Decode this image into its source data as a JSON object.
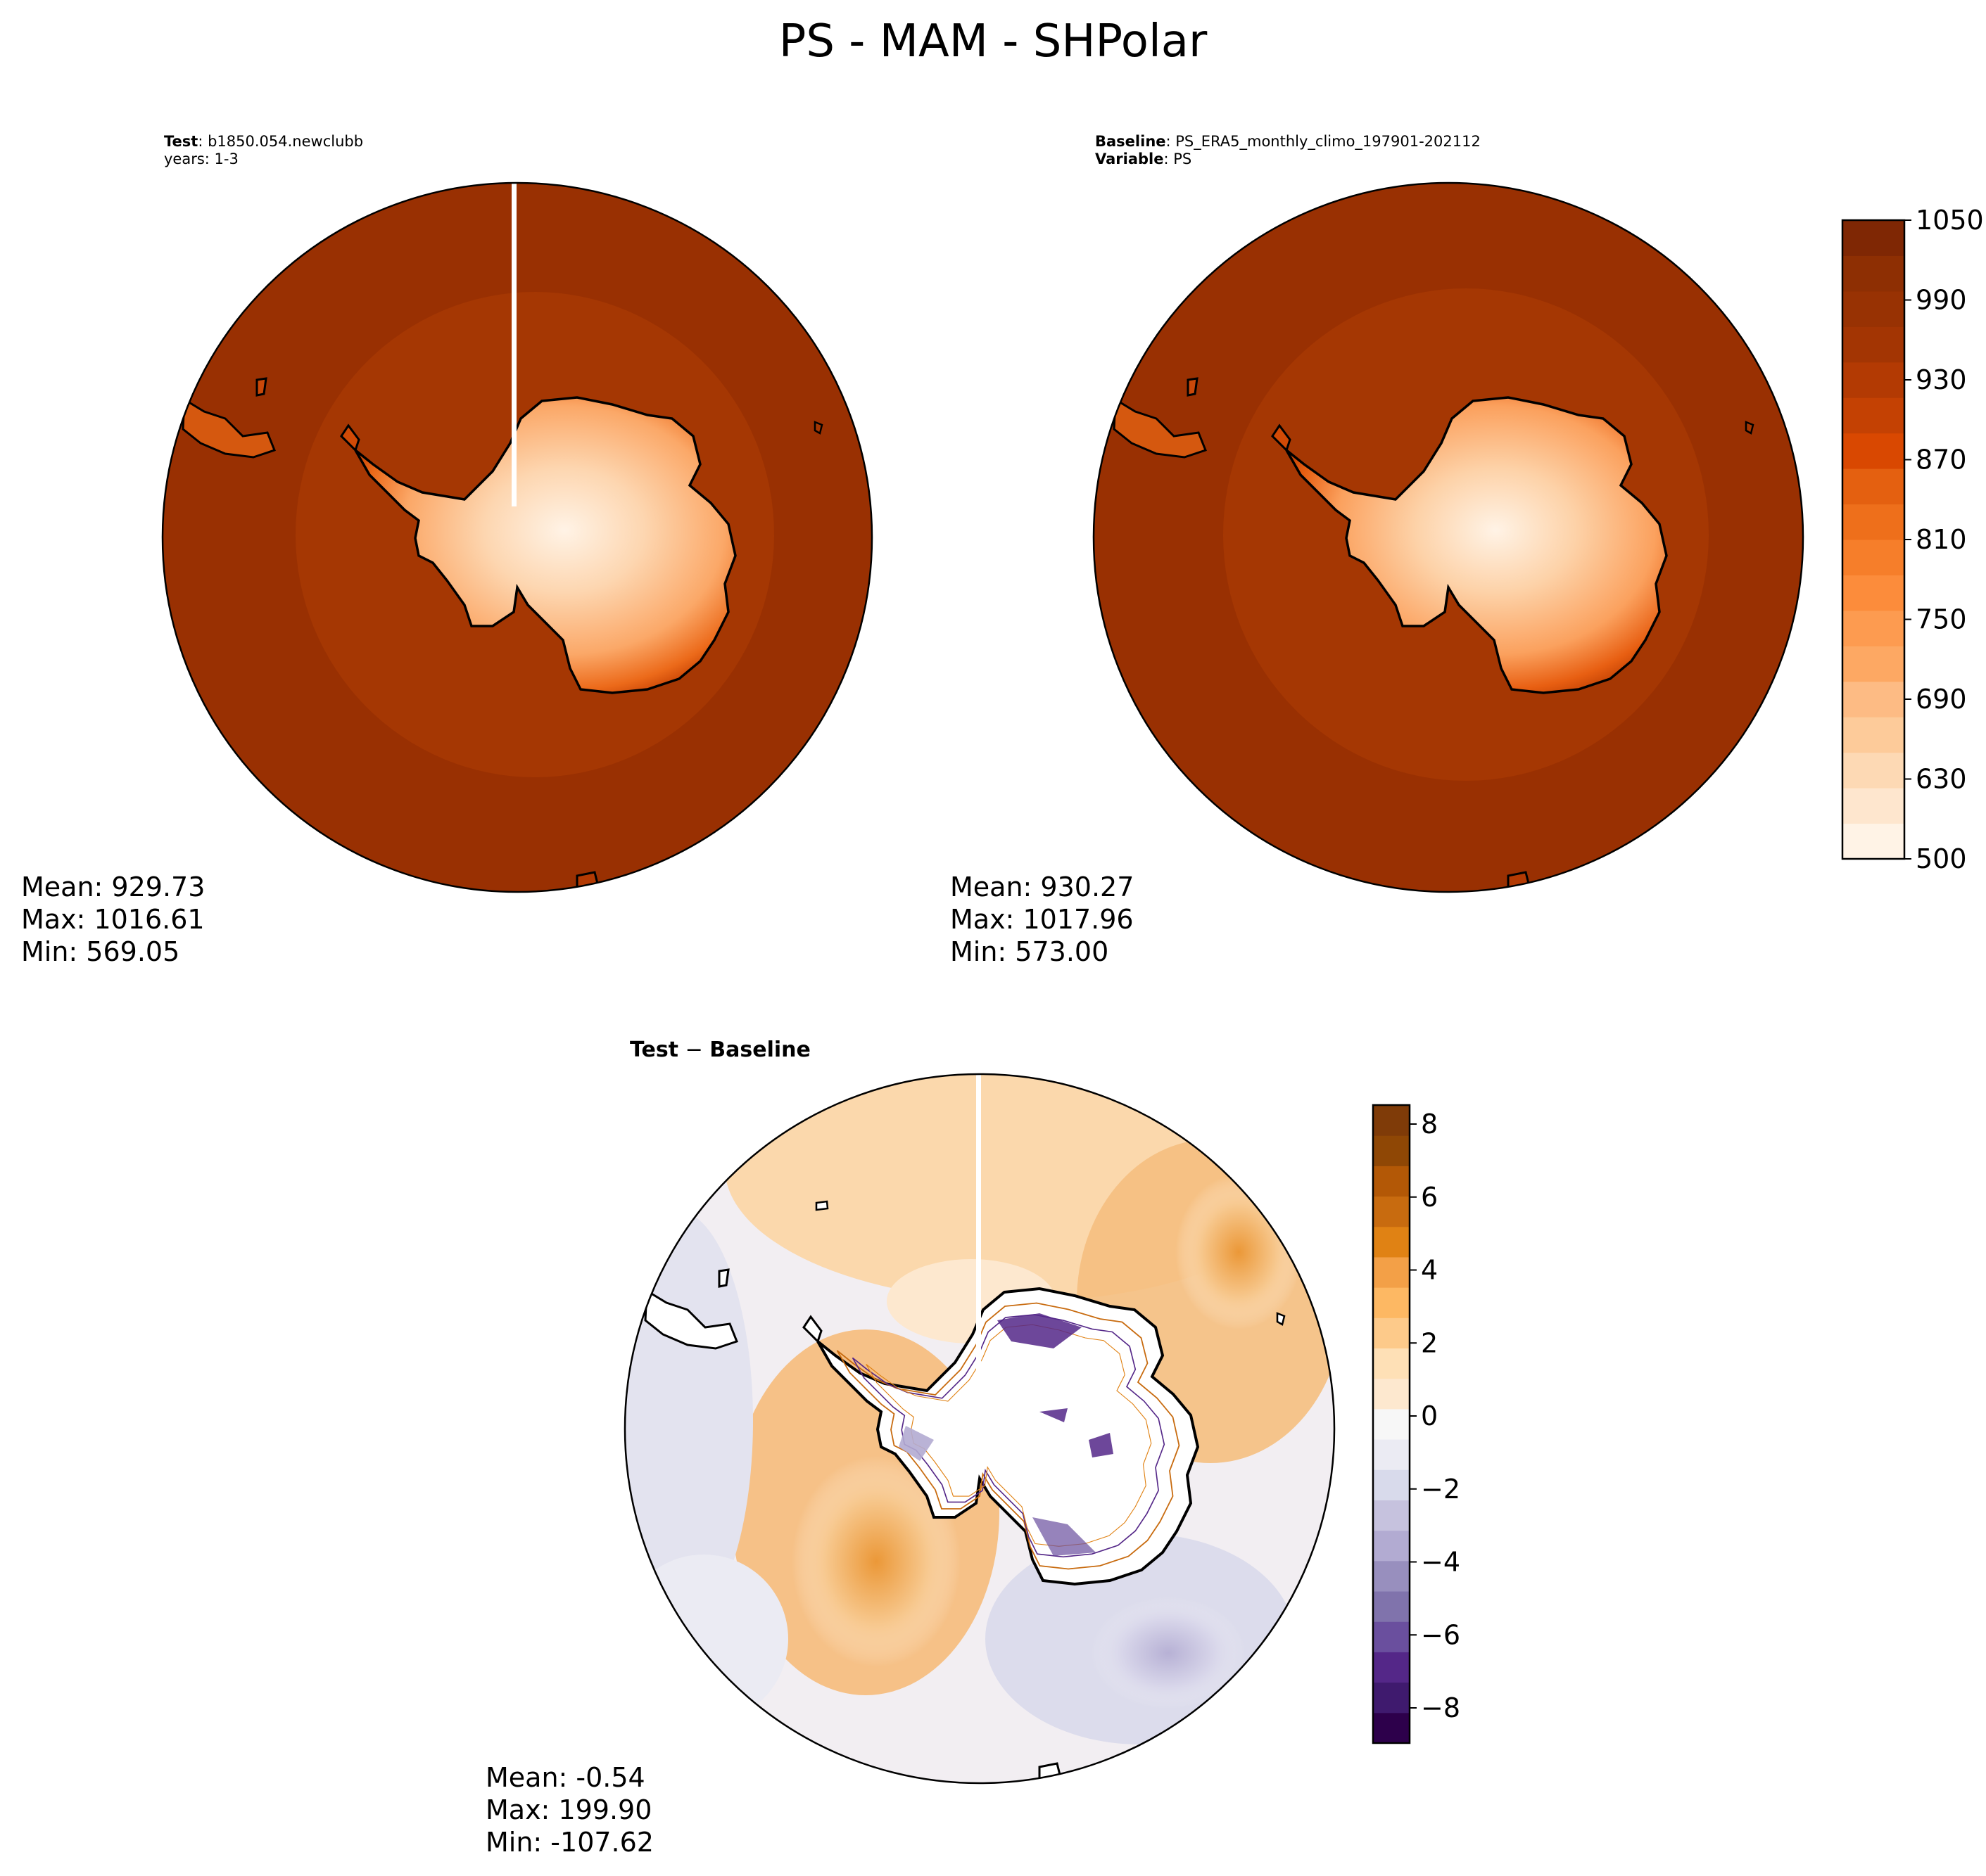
{
  "figure": {
    "title": "PS - MAM - SHPolar"
  },
  "panels": {
    "test": {
      "label_bold": "Test",
      "label_value": ": b1850.054.newclubb",
      "line2": "years: 1-3",
      "stats": {
        "mean": "Mean: 929.73",
        "max": "Max: 1016.61",
        "min": "Min: 569.05"
      }
    },
    "baseline": {
      "label_bold": "Baseline",
      "label_value": ": PS_ERA5_monthly_climo_197901-202112",
      "line2_bold": "Variable",
      "line2_value": ": PS",
      "stats": {
        "mean": "Mean: 930.27",
        "max": "Max: 1017.96",
        "min": "Min: 573.00"
      }
    },
    "diff": {
      "title_a": "Test",
      "title_sep": " − ",
      "title_b": "Baseline",
      "stats": {
        "mean": "Mean: -0.54",
        "max": "Max: 199.90",
        "min": "Min: -107.62"
      }
    }
  },
  "colorbars": {
    "main": {
      "ticks": [
        "1050",
        "990",
        "930",
        "870",
        "810",
        "750",
        "690",
        "630",
        "500"
      ],
      "colormap": "Oranges",
      "colors": [
        "#fff3e6",
        "#fee6ce",
        "#fdd9b4",
        "#fdcb9a",
        "#fdbb84",
        "#fda863",
        "#fd9b50",
        "#fc8c3b",
        "#f67e2a",
        "#ee6f1b",
        "#e46010",
        "#d94801",
        "#c44103",
        "#b33a03",
        "#a33503",
        "#983203",
        "#8e2f03",
        "#7f2704"
      ]
    },
    "diff": {
      "ticks": [
        "8",
        "6",
        "4",
        "2",
        "0",
        "−2",
        "−4",
        "−6",
        "−8"
      ],
      "colormap": "PuOr_r",
      "colors": [
        "#2d004b",
        "#3f1a6e",
        "#542788",
        "#6a4f9e",
        "#8073ac",
        "#988fbe",
        "#b2abd2",
        "#c6c2de",
        "#d8daeb",
        "#ebebf3",
        "#f7f7f7",
        "#fde8cf",
        "#fee0b6",
        "#fdca8a",
        "#fdb863",
        "#f3a047",
        "#e08214",
        "#c86b0f",
        "#b35806",
        "#8f4705",
        "#7f3b08"
      ]
    }
  },
  "colors": {
    "ocean_main": "#993002",
    "ring_main": "#a53703",
    "diff_neg": "#c9c6e0",
    "diff_pos": "#f3ad5c"
  }
}
